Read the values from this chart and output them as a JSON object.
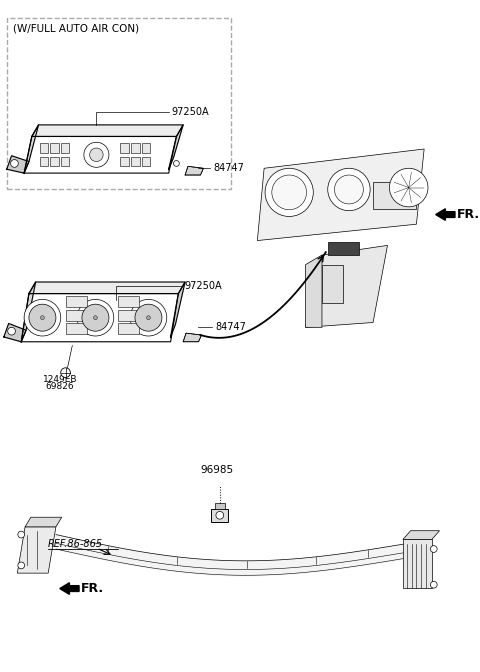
{
  "bg_color": "#ffffff",
  "line_color": "#000000",
  "light_gray": "#888888",
  "dashed_box_color": "#999999",
  "title_text": "(W/FULL AUTO AIR CON)",
  "labels": {
    "97250A_top": "97250A",
    "84747_top": "84747",
    "97250A_mid": "97250A",
    "84747_mid": "84747",
    "1249EB": "1249EB",
    "69826": "69826",
    "96985": "96985",
    "REF": "REF.86-865",
    "FR_top": "FR.",
    "FR_bot": "FR."
  },
  "fig_width": 4.8,
  "fig_height": 6.72,
  "dpi": 100
}
